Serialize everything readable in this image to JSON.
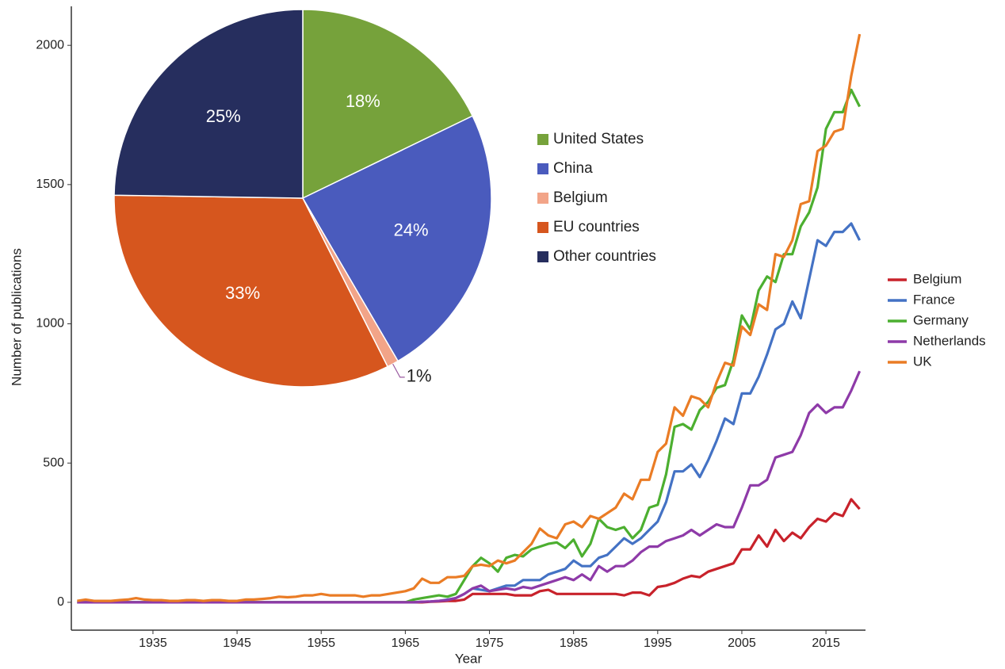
{
  "chart_data": [
    {
      "type": "line",
      "x_label": "Year",
      "y_label": "Number of publications",
      "x": [
        1926,
        1927,
        1928,
        1929,
        1930,
        1931,
        1932,
        1933,
        1934,
        1935,
        1936,
        1937,
        1938,
        1939,
        1940,
        1941,
        1942,
        1943,
        1944,
        1945,
        1946,
        1947,
        1948,
        1949,
        1950,
        1951,
        1952,
        1953,
        1954,
        1955,
        1956,
        1957,
        1958,
        1959,
        1960,
        1961,
        1962,
        1963,
        1964,
        1965,
        1966,
        1967,
        1968,
        1969,
        1970,
        1971,
        1972,
        1973,
        1974,
        1975,
        1976,
        1977,
        1978,
        1979,
        1980,
        1981,
        1982,
        1983,
        1984,
        1985,
        1986,
        1987,
        1988,
        1989,
        1990,
        1991,
        1992,
        1993,
        1994,
        1995,
        1996,
        1997,
        1998,
        1999,
        2000,
        2001,
        2002,
        2003,
        2004,
        2005,
        2006,
        2007,
        2008,
        2009,
        2010,
        2011,
        2012,
        2013,
        2014,
        2015,
        2016,
        2017,
        2018,
        2019
      ],
      "xlim": [
        1925.3,
        2019.7
      ],
      "ylim": [
        -100,
        2140
      ],
      "xticks": [
        1935,
        1945,
        1955,
        1965,
        1975,
        1985,
        1995,
        2005,
        2015
      ],
      "yticks": [
        0,
        500,
        1000,
        1500,
        2000
      ],
      "series": [
        {
          "name": "Belgium",
          "color": "#c8222b",
          "values": [
            0,
            0,
            0,
            0,
            0,
            0,
            0,
            0,
            0,
            0,
            0,
            0,
            0,
            0,
            0,
            0,
            0,
            0,
            0,
            0,
            0,
            0,
            0,
            0,
            0,
            0,
            0,
            0,
            0,
            0,
            0,
            0,
            0,
            0,
            0,
            0,
            0,
            0,
            0,
            0,
            0,
            0,
            2,
            3,
            5,
            5,
            10,
            30,
            30,
            30,
            30,
            30,
            25,
            25,
            25,
            40,
            45,
            30,
            30,
            30,
            30,
            30,
            30,
            30,
            30,
            25,
            35,
            35,
            25,
            55,
            60,
            70,
            85,
            95,
            90,
            110,
            120,
            130,
            140,
            190,
            190,
            240,
            200,
            260,
            220,
            250,
            230,
            270,
            300,
            290,
            320,
            310,
            370,
            335
          ]
        },
        {
          "name": "France",
          "color": "#4472c4",
          "values": [
            0,
            0,
            0,
            0,
            0,
            0,
            0,
            0,
            0,
            0,
            0,
            0,
            0,
            0,
            0,
            0,
            0,
            0,
            0,
            0,
            0,
            0,
            0,
            0,
            0,
            0,
            0,
            0,
            0,
            0,
            0,
            0,
            0,
            0,
            0,
            0,
            0,
            0,
            0,
            0,
            0,
            2,
            3,
            5,
            10,
            15,
            30,
            50,
            45,
            40,
            50,
            60,
            60,
            80,
            80,
            80,
            100,
            110,
            120,
            150,
            130,
            130,
            160,
            170,
            200,
            230,
            210,
            230,
            260,
            290,
            360,
            470,
            470,
            495,
            450,
            510,
            580,
            660,
            640,
            750,
            750,
            810,
            890,
            980,
            1000,
            1080,
            1020,
            1160,
            1300,
            1280,
            1330,
            1330,
            1360,
            1300
          ]
        },
        {
          "name": "Germany",
          "color": "#4caf30",
          "values": [
            0,
            0,
            0,
            0,
            0,
            0,
            0,
            0,
            0,
            0,
            0,
            0,
            0,
            0,
            0,
            0,
            0,
            0,
            0,
            0,
            0,
            0,
            0,
            0,
            0,
            0,
            0,
            0,
            0,
            0,
            0,
            0,
            0,
            0,
            0,
            0,
            0,
            0,
            0,
            0,
            10,
            15,
            20,
            25,
            20,
            30,
            80,
            130,
            160,
            140,
            110,
            160,
            170,
            165,
            190,
            200,
            210,
            215,
            195,
            225,
            165,
            210,
            300,
            270,
            260,
            270,
            230,
            260,
            340,
            350,
            460,
            630,
            640,
            620,
            690,
            720,
            770,
            780,
            870,
            1030,
            980,
            1120,
            1170,
            1150,
            1250,
            1250,
            1350,
            1400,
            1490,
            1700,
            1760,
            1760,
            1840,
            1780
          ]
        },
        {
          "name": "Netherlands",
          "color": "#8e3aa8",
          "values": [
            0,
            0,
            0,
            0,
            0,
            0,
            0,
            0,
            0,
            0,
            0,
            0,
            0,
            0,
            0,
            0,
            0,
            0,
            0,
            0,
            0,
            0,
            0,
            0,
            0,
            0,
            0,
            0,
            0,
            0,
            0,
            0,
            0,
            0,
            0,
            0,
            0,
            0,
            0,
            0,
            0,
            2,
            3,
            5,
            8,
            15,
            30,
            50,
            60,
            40,
            45,
            50,
            45,
            55,
            50,
            60,
            70,
            80,
            90,
            80,
            100,
            80,
            130,
            110,
            130,
            130,
            150,
            180,
            200,
            200,
            220,
            230,
            240,
            260,
            240,
            260,
            280,
            270,
            270,
            340,
            420,
            420,
            440,
            520,
            530,
            540,
            600,
            680,
            710,
            680,
            700,
            700,
            760,
            830
          ]
        },
        {
          "name": "UK",
          "color": "#ea7c25",
          "values": [
            5,
            10,
            5,
            5,
            5,
            8,
            10,
            15,
            10,
            8,
            8,
            5,
            5,
            8,
            8,
            5,
            8,
            8,
            5,
            5,
            10,
            10,
            12,
            15,
            20,
            18,
            20,
            25,
            25,
            30,
            25,
            25,
            25,
            25,
            20,
            25,
            25,
            30,
            35,
            40,
            50,
            85,
            70,
            70,
            90,
            90,
            95,
            130,
            135,
            130,
            150,
            140,
            150,
            180,
            210,
            265,
            240,
            230,
            280,
            290,
            270,
            310,
            300,
            320,
            340,
            390,
            370,
            440,
            440,
            540,
            570,
            700,
            670,
            740,
            730,
            700,
            790,
            860,
            850,
            990,
            960,
            1070,
            1050,
            1250,
            1240,
            1300,
            1430,
            1440,
            1620,
            1640,
            1690,
            1700,
            1890,
            2040
          ]
        }
      ]
    },
    {
      "type": "pie",
      "categories": [
        "United States",
        "China",
        "Belgium",
        "EU countries",
        "Other countries"
      ],
      "values": [
        18,
        24,
        1,
        33,
        25
      ],
      "value_labels": [
        "18%",
        "24%",
        "1%",
        "33%",
        "25%"
      ],
      "colors": [
        "#76a23b",
        "#4a5bbd",
        "#f2a488",
        "#d6561e",
        "#262e5e"
      ]
    }
  ]
}
